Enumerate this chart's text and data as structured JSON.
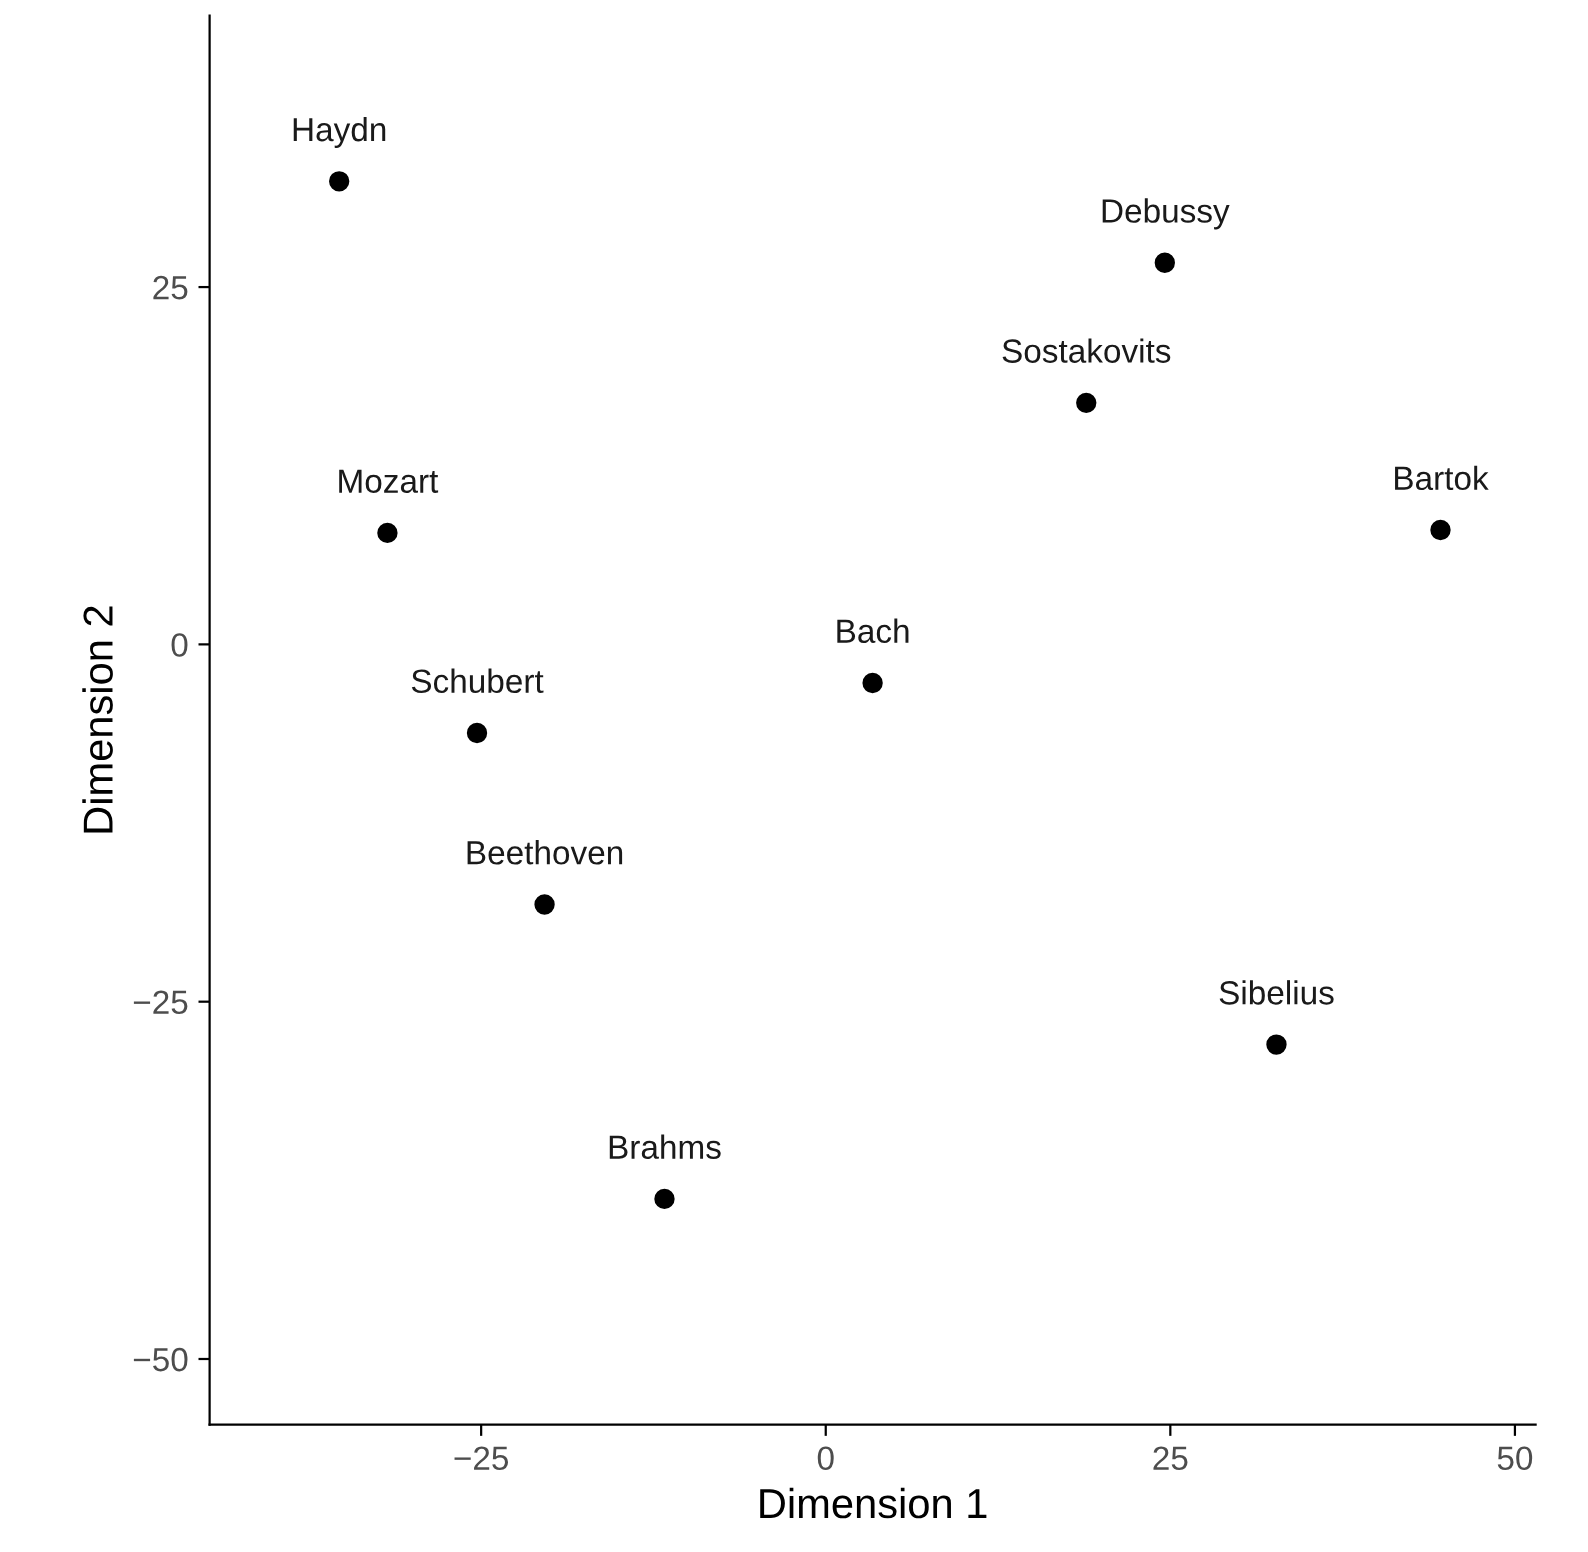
{
  "chart_data": {
    "type": "scatter",
    "xlabel": "Dimension 1",
    "ylabel": "Dimension 2",
    "x": [
      -35.3,
      24.6,
      18.9,
      44.6,
      -31.8,
      3.4,
      -25.3,
      -20.4,
      32.7,
      -11.7
    ],
    "values": [
      32.4,
      26.7,
      16.9,
      8.0,
      7.8,
      -2.7,
      -6.2,
      -18.2,
      -28.0,
      -38.8
    ],
    "color": "#000000",
    "marker": "circle",
    "annotations": [
      {
        "text": "Haydn",
        "x": -35.3,
        "y": 32.4
      },
      {
        "text": "Debussy",
        "x": 24.6,
        "y": 26.7
      },
      {
        "text": "Sostakovits",
        "x": 18.9,
        "y": 16.9
      },
      {
        "text": "Bartok",
        "x": 44.6,
        "y": 8.0
      },
      {
        "text": "Mozart",
        "x": -31.8,
        "y": 7.8
      },
      {
        "text": "Bach",
        "x": 3.4,
        "y": -2.7
      },
      {
        "text": "Schubert",
        "x": -25.3,
        "y": -6.2
      },
      {
        "text": "Beethoven",
        "x": -20.4,
        "y": -18.2
      },
      {
        "text": "Sibelius",
        "x": 32.7,
        "y": -28.0
      },
      {
        "text": "Brahms",
        "x": -11.7,
        "y": -38.8
      }
    ],
    "xlim": [
      -44.7,
      51.5
    ],
    "ylim": [
      -54.6,
      44
    ],
    "xticks": [
      {
        "value": -25,
        "label": "−25"
      },
      0,
      25,
      50
    ],
    "yticks": [
      {
        "value": -50,
        "label": "−50"
      },
      {
        "value": -25,
        "label": "−25"
      },
      0,
      25
    ],
    "grid": false
  }
}
